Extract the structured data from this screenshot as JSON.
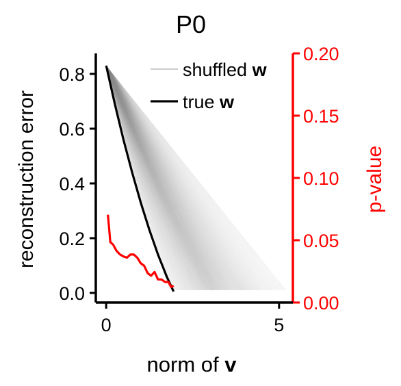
{
  "chart_data": {
    "type": "line",
    "title": "P0",
    "xlabel": {
      "prefix": "norm of ",
      "bold": "v"
    },
    "ylabel": "reconstruction error",
    "y2label": "p-value",
    "xlim": [
      -0.3,
      5.4
    ],
    "ylim": [
      -0.035,
      0.875
    ],
    "y2lim": [
      0,
      0.2
    ],
    "xticks": [
      0,
      5
    ],
    "yticks": [
      0.0,
      0.2,
      0.4,
      0.6,
      0.8
    ],
    "y2ticks": [
      0.0,
      0.05,
      0.1,
      0.15,
      0.2
    ],
    "legend": {
      "placement": "top",
      "entries": [
        {
          "prefix": "shuffled ",
          "bold": "w",
          "color": "#9a9a9a"
        },
        {
          "prefix": "true ",
          "bold": "w",
          "color": "#000000"
        }
      ]
    },
    "series": [
      {
        "kind": "shuffled-fan",
        "color": "#8c8c8c",
        "count": 160,
        "start": [
          0.0,
          0.83
        ],
        "end_x_range": [
          1.85,
          5.2
        ],
        "end_y": 0.01
      },
      {
        "kind": "true",
        "axis": "left",
        "color": "#000000",
        "x": [
          0.0,
          0.25,
          0.5,
          0.75,
          1.0,
          1.25,
          1.5,
          1.75,
          1.95
        ],
        "y": [
          0.83,
          0.69,
          0.56,
          0.44,
          0.33,
          0.23,
          0.14,
          0.06,
          0.005
        ]
      },
      {
        "kind": "p-value",
        "axis": "right",
        "color": "#ff0000",
        "x": [
          0.05,
          0.12,
          0.2,
          0.3,
          0.4,
          0.5,
          0.6,
          0.7,
          0.8,
          0.9,
          1.0,
          1.1,
          1.2,
          1.3,
          1.4,
          1.5,
          1.6,
          1.7,
          1.8,
          1.88,
          1.95
        ],
        "y": [
          0.0705,
          0.0485,
          0.0465,
          0.0415,
          0.0385,
          0.037,
          0.036,
          0.0385,
          0.0385,
          0.036,
          0.0315,
          0.0295,
          0.0235,
          0.0215,
          0.0245,
          0.0185,
          0.0185,
          0.0165,
          0.0165,
          0.0125,
          0.0135
        ]
      }
    ]
  }
}
